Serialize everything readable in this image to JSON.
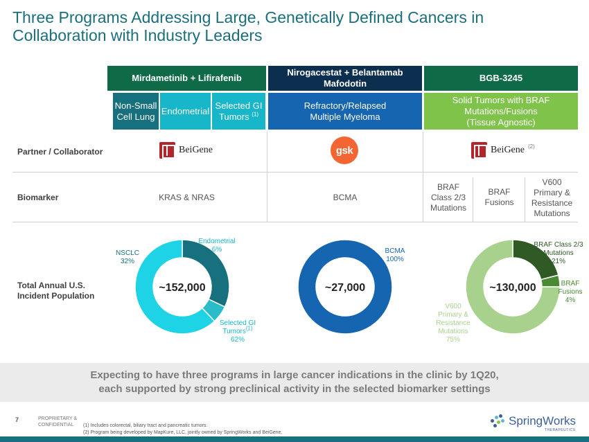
{
  "title": {
    "line1": "Three Programs Addressing Large, Genetically Defined Cancers in",
    "line2": "Collaboration with Industry Leaders"
  },
  "programs": [
    {
      "name": "Mirdametinib + Lifirafenib",
      "color": "#0f6a48"
    },
    {
      "name_line1": "Nirogacestat + Belantamab",
      "name_line2": "Mafodotin",
      "color": "#0d2f4f"
    },
    {
      "name": "BGB-3245",
      "color": "#0f6a48"
    }
  ],
  "indications": {
    "nsclc": {
      "line1": "Non-Small",
      "line2": "Cell Lung",
      "color": "#17707e"
    },
    "endometrial": {
      "label": "Endometrial",
      "color": "#17b6c9"
    },
    "selected_gi": {
      "line1": "Selected GI",
      "line2": "Tumors",
      "sup": "(1)",
      "color": "#17b6c9"
    },
    "myeloma": {
      "line1": "Refractory/Relapsed",
      "line2": "Multiple Myeloma",
      "color": "#1565b0"
    },
    "braf_solid": {
      "line1": "Solid Tumors with BRAF",
      "line2": "Mutations/Fusions",
      "line3": "(Tissue Agnostic)",
      "color": "#7fc34a"
    }
  },
  "rows": {
    "partner": "Partner / Collaborator",
    "biomarker": "Biomarker",
    "incidence_line1": "Total Annual U.S.",
    "incidence_line2": "Incident Population"
  },
  "partners": {
    "beigene": "BeiGene",
    "gsk": "gsk",
    "beigene_note": "(2)"
  },
  "biomarkers": {
    "kras": "KRAS & NRAS",
    "bcma": "BCMA",
    "braf_class": {
      "line1": "BRAF",
      "line2": "Class 2/3",
      "line3": "Mutations"
    },
    "braf_fusions": {
      "line1": "BRAF",
      "line2": "Fusions"
    },
    "v600": {
      "line1": "V600",
      "line2": "Primary &",
      "line3": "Resistance",
      "line4": "Mutations"
    }
  },
  "chart_data": [
    {
      "type": "pie",
      "center_label": "~152,000",
      "slices": [
        {
          "label": "NSCLC",
          "value": 32,
          "color": "#17707e"
        },
        {
          "label": "Endometrial",
          "value": 6,
          "color": "#2abcc9"
        },
        {
          "label": "Selected GI Tumors (1)",
          "value": 62,
          "color": "#1ed3e6"
        }
      ]
    },
    {
      "type": "pie",
      "center_label": "~27,000",
      "slices": [
        {
          "label": "BCMA",
          "value": 100,
          "color": "#1565b0"
        }
      ]
    },
    {
      "type": "pie",
      "center_label": "~130,000",
      "slices": [
        {
          "label": "BRAF Class 2/3 Mutations",
          "value": 21,
          "color": "#2f5a25"
        },
        {
          "label": "BRAF Fusions",
          "value": 4,
          "color": "#4b8a35"
        },
        {
          "label": "V600 Primary & Resistance Mutations",
          "value": 75,
          "color": "#a9d18e"
        }
      ]
    }
  ],
  "donut_labels": {
    "nsclc": {
      "line1": "NSCLC",
      "line2": "32%"
    },
    "endometrial": {
      "line1": "Endometrial",
      "line2": "6%"
    },
    "selected_gi": {
      "line1": "Selected GI",
      "line2": "Tumors",
      "sup": "(1)",
      "line3": "62%"
    },
    "bcma": {
      "line1": "BCMA",
      "line2": "100%"
    },
    "braf_class": {
      "line1": "BRAF Class 2/3",
      "line2": "Mutations",
      "line3": "21%"
    },
    "braf_fusions": {
      "line1": "BRAF",
      "line2": "Fusions",
      "line3": "4%"
    },
    "v600": {
      "line1": "V600",
      "line2": "Primary &",
      "line3": "Resistance",
      "line4": "Mutations",
      "line5": "75%"
    }
  },
  "banner": {
    "line1": "Expecting to have three programs in large cancer indications in the clinic by 1Q20,",
    "line2": "each supported by strong preclinical activity in the selected biomarker settings"
  },
  "footer": {
    "page": "7",
    "confidential_line1": "PROPRIETARY &",
    "confidential_line2": "CONFIDENTIAL",
    "note1": "(1)   Includes colorectal, biliary tract and pancreatic tumors.",
    "note2": "(2)   Program being developed by MapKure, LLC, jointly owned by SpringWorks and BeiGene.",
    "brand": "SpringWorks",
    "brand_tag": "THERAPEUTICS"
  }
}
